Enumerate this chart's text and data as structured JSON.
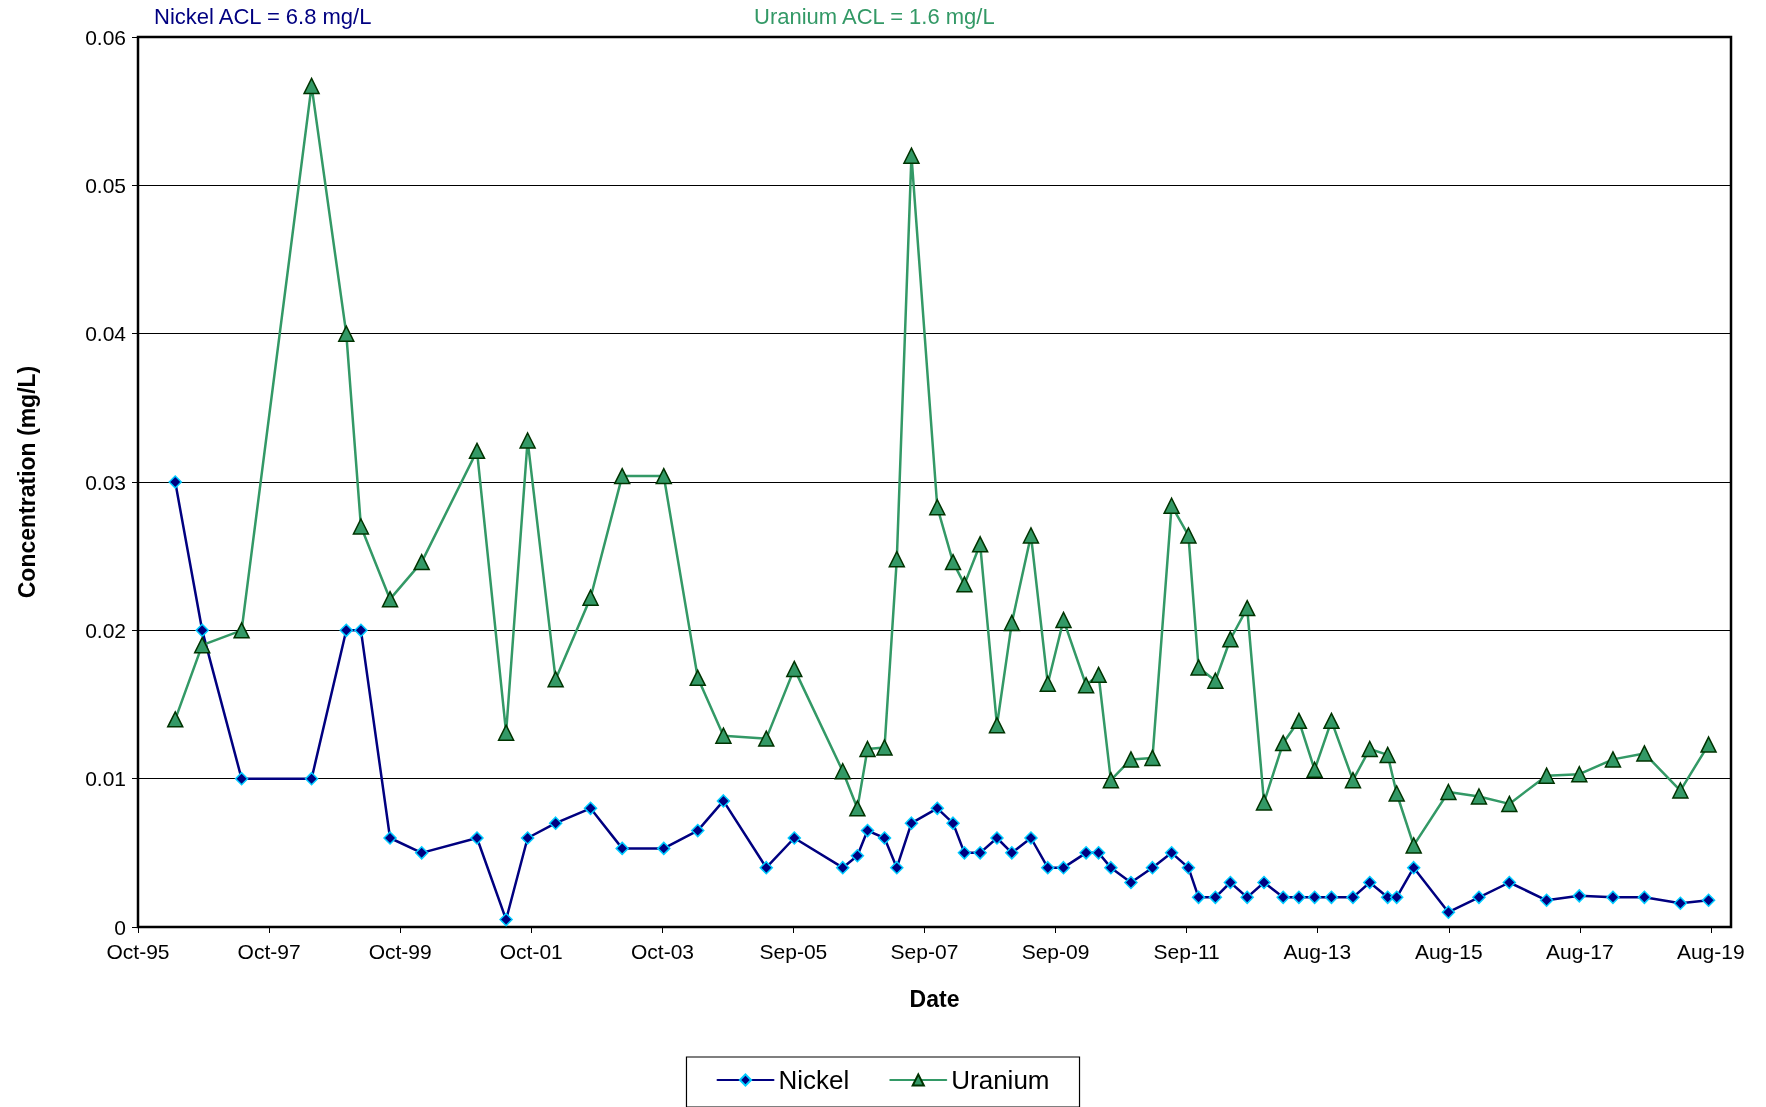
{
  "chart_data": {
    "type": "line",
    "xlabel": "Date",
    "ylabel": "Concentration (mg/L)",
    "annotations": [
      "Nickel ACL = 6.8 mg/L",
      "Uranium ACL = 1.6 mg/L"
    ],
    "x": [
      "1996-05-15",
      "1996-10-11",
      "1997-05-17",
      "1998-06-08",
      "1998-12-17",
      "1999-03-08",
      "1999-08-16",
      "2000-02-07",
      "2000-12-09",
      "2001-05-19",
      "2001-09-15",
      "2002-02-17",
      "2002-08-29",
      "2003-02-20",
      "2003-10-08",
      "2004-04-13",
      "2004-09-02",
      "2005-04-27",
      "2005-09-29",
      "2006-06-24",
      "2006-09-13",
      "2006-11-08",
      "2007-02-10",
      "2007-04-19",
      "2007-07-09",
      "2007-11-29",
      "2008-02-24",
      "2008-04-27",
      "2008-07-23",
      "2008-10-24",
      "2009-01-14",
      "2009-04-30",
      "2009-08-01",
      "2009-10-27",
      "2010-03-01",
      "2010-05-09",
      "2010-07-16",
      "2010-11-04",
      "2011-03-03",
      "2011-06-17",
      "2011-09-18",
      "2011-11-13",
      "2012-02-14",
      "2012-05-07",
      "2012-08-08",
      "2012-11-09",
      "2013-02-23",
      "2013-05-21",
      "2013-08-16",
      "2013-11-17",
      "2014-03-16",
      "2014-06-17",
      "2014-09-24",
      "2014-11-13",
      "2015-02-15",
      "2015-08-26",
      "2016-02-11",
      "2016-07-28",
      "2017-02-19",
      "2017-08-19",
      "2018-02-21",
      "2018-08-14",
      "2019-03-01",
      "2019-08-04"
    ],
    "series": [
      {
        "name": "Nickel",
        "color": "#000080",
        "marker": "diamond",
        "values": [
          0.03,
          0.02,
          0.01,
          0.01,
          0.02,
          0.02,
          0.006,
          0.005,
          0.006,
          0.0005,
          0.006,
          0.007,
          0.008,
          0.0053,
          0.0053,
          0.0065,
          0.0085,
          0.004,
          0.006,
          0.004,
          0.0048,
          0.0065,
          0.006,
          0.004,
          0.007,
          0.008,
          0.007,
          0.005,
          0.005,
          0.006,
          0.005,
          0.006,
          0.004,
          0.004,
          0.005,
          0.005,
          0.004,
          0.003,
          0.004,
          0.005,
          0.004,
          0.002,
          0.002,
          0.003,
          0.002,
          0.003,
          0.002,
          0.002,
          0.002,
          0.002,
          0.002,
          0.003,
          0.002,
          0.002,
          0.004,
          0.001,
          0.002,
          0.003,
          0.0018,
          0.0021,
          0.002,
          0.002,
          0.0016,
          0.0018
        ]
      },
      {
        "name": "Uranium",
        "color": "#339966",
        "marker": "triangle",
        "values": [
          0.014,
          0.019,
          0.02,
          0.0567,
          0.04,
          0.027,
          0.0221,
          0.0246,
          0.0321,
          0.0131,
          0.0328,
          0.0167,
          0.0222,
          0.0304,
          0.0304,
          0.0168,
          0.0129,
          0.0127,
          0.0174,
          0.0105,
          0.008,
          0.012,
          0.0121,
          0.0248,
          0.052,
          0.0283,
          0.0246,
          0.0231,
          0.0258,
          0.0136,
          0.0205,
          0.0264,
          0.0164,
          0.0207,
          0.0163,
          0.017,
          0.0099,
          0.0113,
          0.0114,
          0.0284,
          0.0264,
          0.0175,
          0.0166,
          0.0194,
          0.0215,
          0.0084,
          0.0124,
          0.0139,
          0.0106,
          0.0139,
          0.0099,
          0.012,
          0.0116,
          0.009,
          0.0055,
          0.0091,
          0.0088,
          0.0083,
          0.0102,
          0.0103,
          0.0113,
          0.0117,
          0.0092,
          0.0123
        ]
      }
    ],
    "xlim": [
      "1995-10-22",
      "2019-12-06"
    ],
    "xticks": [
      {
        "value": "1995-10-22",
        "label": "Oct-95"
      },
      {
        "value": "1997-10-16",
        "label": "Oct-97"
      },
      {
        "value": "1999-10-11",
        "label": "Oct-99"
      },
      {
        "value": "2001-10-05",
        "label": "Oct-01"
      },
      {
        "value": "2003-10-01",
        "label": "Oct-03"
      },
      {
        "value": "2005-09-24",
        "label": "Sep-05"
      },
      {
        "value": "2007-09-19",
        "label": "Sep-07"
      },
      {
        "value": "2009-09-13",
        "label": "Sep-09"
      },
      {
        "value": "2011-09-08",
        "label": "Sep-11"
      },
      {
        "value": "2013-08-31",
        "label": "Aug-13"
      },
      {
        "value": "2015-08-28",
        "label": "Aug-15"
      },
      {
        "value": "2017-08-22",
        "label": "Aug-17"
      },
      {
        "value": "2019-08-16",
        "label": "Aug-19"
      }
    ],
    "ylim": [
      0,
      0.06
    ],
    "yticks": [
      0,
      0.01,
      0.02,
      0.03,
      0.04,
      0.05,
      0.06
    ],
    "grid": "y",
    "legend": "bottom",
    "line_style": "solid"
  }
}
